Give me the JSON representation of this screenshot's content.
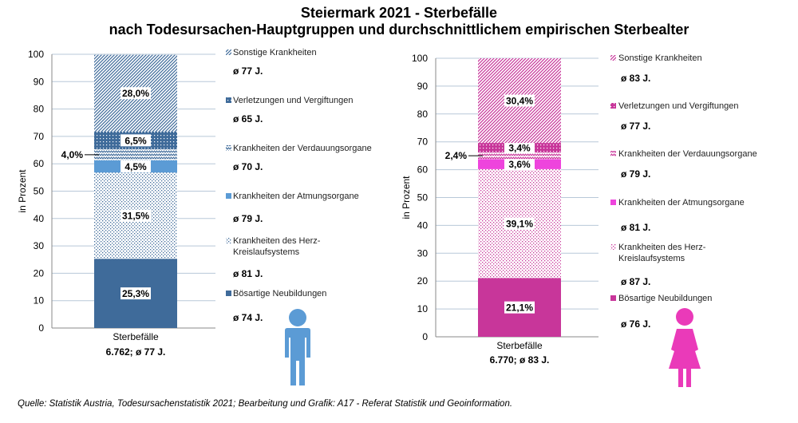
{
  "title": {
    "line1": "Steiermark 2021 - Sterbefälle",
    "line2": "nach Todesursachen-Hauptgruppen und durchschnittlichem empirischen Sterbealter"
  },
  "source": "Quelle: Statistik Austria, Todesursachenstatistik 2021; Bearbeitung und Grafik: A17 - Referat Statistik und Geoinformation.",
  "colors": {
    "male_accent": "#3f6b9a",
    "male_light": "#5b9bd5",
    "female_accent": "#c8369a",
    "female_light": "#ee44dd",
    "male_icon": "#5b9bd5",
    "female_icon": "#ea3ab9"
  },
  "icons": {
    "male": "male-person-icon",
    "female": "female-person-icon"
  },
  "chart_data": [
    {
      "type": "bar",
      "stacked": true,
      "gender": "male",
      "categories": [
        "Sterbefälle"
      ],
      "category_sublabel": "6.762; ø 77 J.",
      "ylabel": "in Prozent",
      "ylim": [
        0,
        100
      ],
      "yticks": [
        0,
        10,
        20,
        30,
        40,
        50,
        60,
        70,
        80,
        90,
        100
      ],
      "grid": true,
      "legend_position": "right",
      "series": [
        {
          "name": "Bösartige Neubildungen",
          "value": 25.3,
          "label": "25,3%",
          "age": "ø 74 J.",
          "fill": "solid"
        },
        {
          "name": "Krankheiten des Herz-\nKreislaufsystems",
          "value": 31.5,
          "label": "31,5%",
          "age": "ø 81 J.",
          "fill": "dots"
        },
        {
          "name": "Krankheiten der Atmungsorgane",
          "value": 4.5,
          "label": "4,5%",
          "age": "ø 79 J.",
          "fill": "light"
        },
        {
          "name": "Krankheiten der Verdauungsorgane",
          "value": 4.0,
          "label": "4,0%",
          "age": "ø 70 J.",
          "fill": "wave"
        },
        {
          "name": "Verletzungen und Vergiftungen",
          "value": 6.5,
          "label": "6,5%",
          "age": "ø 65 J.",
          "fill": "grid"
        },
        {
          "name": "Sonstige Krankheiten",
          "value": 28.0,
          "label": "28,0%",
          "age": "ø 77 J.",
          "fill": "diag"
        }
      ]
    },
    {
      "type": "bar",
      "stacked": true,
      "gender": "female",
      "categories": [
        "Sterbefälle"
      ],
      "category_sublabel": "6.770; ø 83 J.",
      "ylabel": "in Prozent",
      "ylim": [
        0,
        100
      ],
      "yticks": [
        0,
        10,
        20,
        30,
        40,
        50,
        60,
        70,
        80,
        90,
        100
      ],
      "grid": true,
      "legend_position": "right",
      "series": [
        {
          "name": "Bösartige Neubildungen",
          "value": 21.1,
          "label": "21,1%",
          "age": "ø 76 J.",
          "fill": "solid"
        },
        {
          "name": "Krankheiten des Herz-\nKreislaufsystems",
          "value": 39.1,
          "label": "39,1%",
          "age": "ø 87 J.",
          "fill": "dots"
        },
        {
          "name": "Krankheiten der Atmungsorgane",
          "value": 3.6,
          "label": "3,6%",
          "age": "ø 81 J.",
          "fill": "light"
        },
        {
          "name": "Krankheiten der Verdauungsorgane",
          "value": 2.4,
          "label": "2,4%",
          "age": "ø 79 J.",
          "fill": "wave"
        },
        {
          "name": "Verletzungen und Vergiftungen",
          "value": 3.4,
          "label": "3,4%",
          "age": "ø 77 J.",
          "fill": "grid"
        },
        {
          "name": "Sonstige Krankheiten",
          "value": 30.4,
          "label": "30,4%",
          "age": "ø 83 J.",
          "fill": "diag"
        }
      ]
    }
  ]
}
